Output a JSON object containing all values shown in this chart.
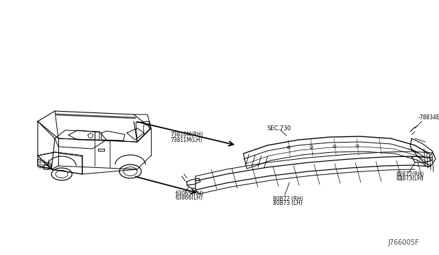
{
  "bg_color": "#ffffff",
  "line_color": "#000000",
  "diagram_id": "J766005F",
  "labels": {
    "sec730": "SEC.730",
    "part_78834E": "-78834E",
    "part_73810M_RH": "73810M(RH)",
    "part_73811M_LH": "73811M(LH)",
    "part_82872_RH": "82872(RH)",
    "part_82873_LH": "82873(LH)",
    "part_80872_RH": "80B72 (RH)",
    "part_80873_LH": "80B73 (LH)",
    "part_63065_RH": "63065(RH)",
    "part_63866_LH": "63866(LH)"
  },
  "figsize": [
    6.4,
    3.72
  ],
  "dpi": 100
}
